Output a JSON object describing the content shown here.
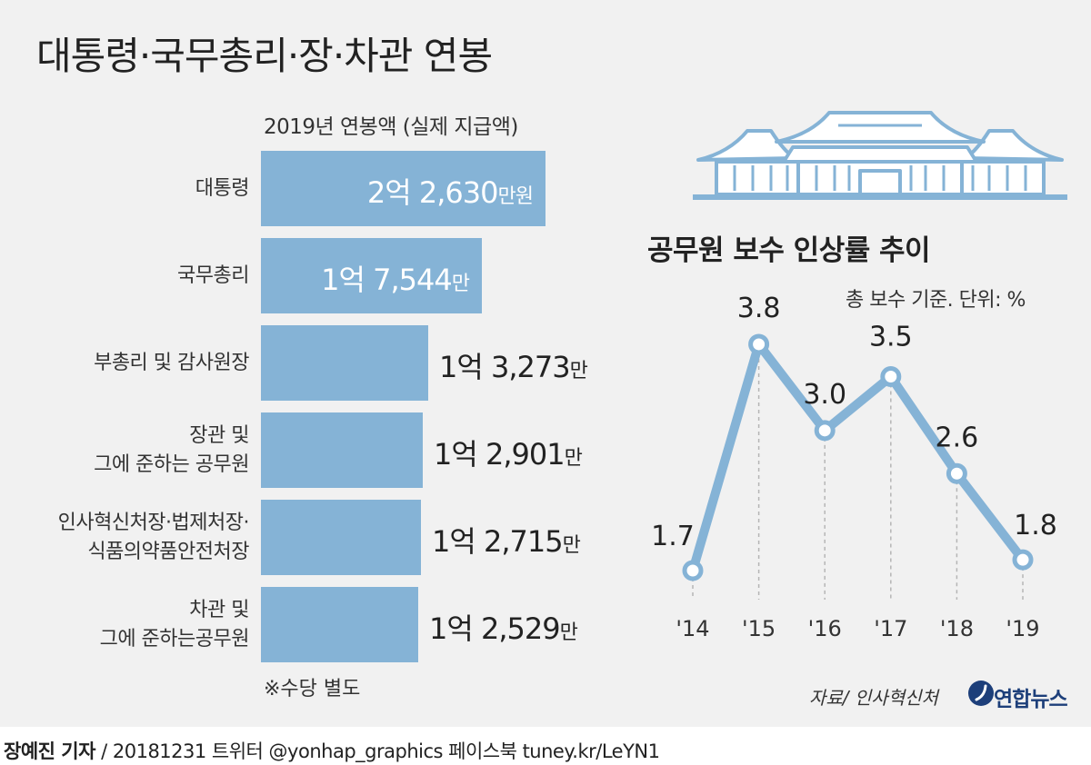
{
  "title": "대통령·국무총리·장·차관 연봉",
  "bar_chart": {
    "subtitle": "2019년 연봉액 (실제 지급액)",
    "footnote": "※수당 별도"
  },
  "line_chart": {
    "title": "공무원 보수 인상률 추이",
    "subtitle": "총 보수 기준. 단위: %"
  },
  "source": "자료/ 인사혁신처",
  "logo": "연합뉴스",
  "byline": {
    "reporter": "장예진 기자",
    "details": "/ 20181231 트위터 @yonhap_graphics  페이스북 tuney.kr/LeYN1"
  },
  "colors": {
    "bar": "#85b3d6",
    "line": "#85b3d6",
    "panel": "#f1f1f1"
  },
  "chart_data": [
    {
      "type": "bar",
      "orientation": "horizontal",
      "title": "2019년 연봉액 (실제 지급액)",
      "categories": [
        "대통령",
        "국무총리",
        "부총리 및 감사원장",
        "장관 및 그에 준하는 공무원",
        "인사혁신처장·법제처장·식품의약품안전처장",
        "차관 및 그에 준하는공무원"
      ],
      "category_lines": [
        [
          "대통령"
        ],
        [
          "국무총리"
        ],
        [
          "부총리 및 감사원장"
        ],
        [
          "장관 및",
          "그에 준하는 공무원"
        ],
        [
          "인사혁신처장·법제처장·",
          "식품의약품안전처장"
        ],
        [
          "차관 및",
          "그에 준하는공무원"
        ]
      ],
      "values": [
        22630,
        17544,
        13273,
        12901,
        12715,
        12529
      ],
      "unit": "만원",
      "data_labels": [
        {
          "main": "2억 2,630",
          "unit": "만원"
        },
        {
          "main": "1억 7,544",
          "unit": "만"
        },
        {
          "main": "1억 3,273",
          "unit": "만"
        },
        {
          "main": "1억 2,901",
          "unit": "만"
        },
        {
          "main": "1억 2,715",
          "unit": "만"
        },
        {
          "main": "1억 2,529",
          "unit": "만"
        }
      ]
    },
    {
      "type": "line",
      "title": "공무원 보수 인상률 추이",
      "subtitle": "총 보수 기준. 단위: %",
      "x": [
        "'14",
        "'15",
        "'16",
        "'17",
        "'18",
        "'19"
      ],
      "values": [
        1.7,
        3.8,
        3.0,
        3.5,
        2.6,
        1.8
      ],
      "data_labels": [
        "1.7",
        "3.8",
        "3.0",
        "3.5",
        "2.6",
        "1.8"
      ],
      "unit": "%",
      "drop_lines": true
    }
  ]
}
